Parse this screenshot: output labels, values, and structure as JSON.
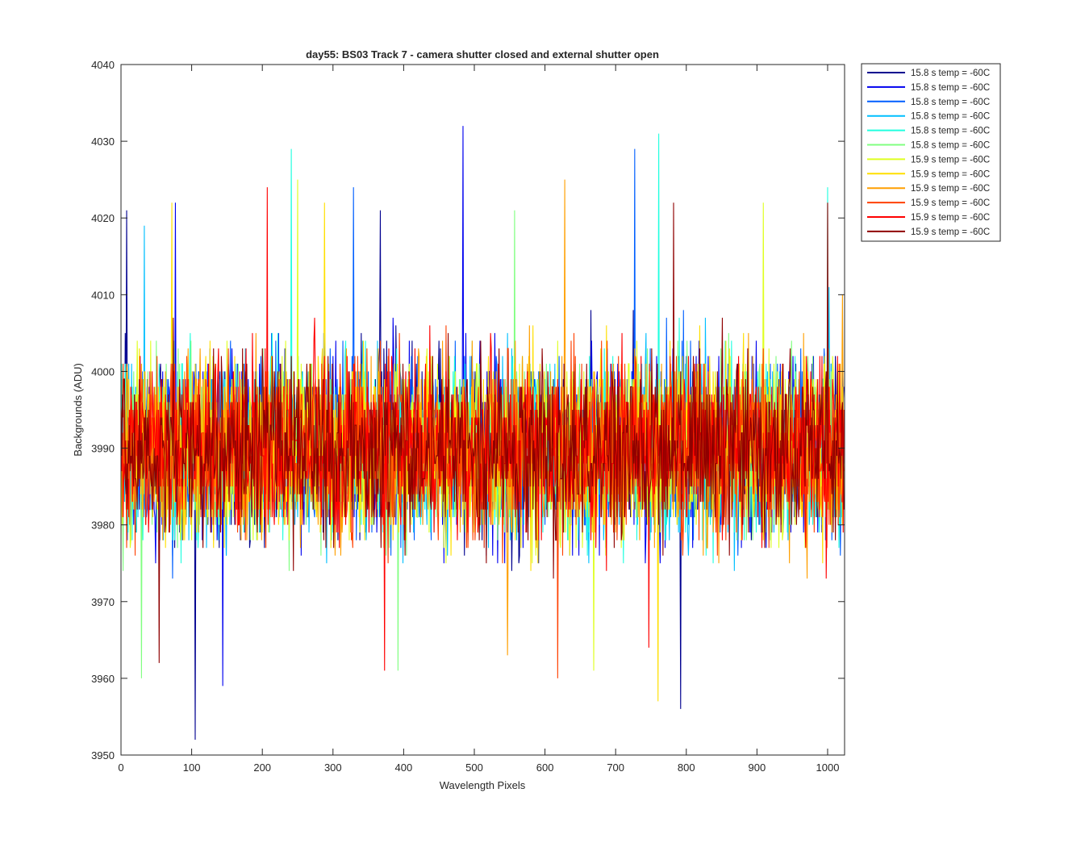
{
  "chart_data": {
    "type": "line",
    "title": "day55: BS03  Track 7 - camera shutter closed and external shutter open",
    "xlabel": "Wavelength Pixels",
    "ylabel": "Backgrounds (ADU)",
    "xlim": [
      0,
      1024
    ],
    "ylim": [
      3950,
      4040
    ],
    "xticks": [
      0,
      100,
      200,
      300,
      400,
      500,
      600,
      700,
      800,
      900,
      1000
    ],
    "yticks": [
      3950,
      3960,
      3970,
      3980,
      3990,
      4000,
      4010,
      4020,
      4030,
      4040
    ],
    "grid": false,
    "legend_position": "outside-top-right",
    "n_points": 1024,
    "baseline_mean": 3990,
    "noise_range": [
      -18,
      18
    ],
    "series": [
      {
        "name": "15.8 s temp = -60C",
        "color": "#00008F",
        "peaks": [
          {
            "x": 105,
            "y": 3952
          },
          {
            "x": 8,
            "y": 4021
          },
          {
            "x": 792,
            "y": 3956
          },
          {
            "x": 367,
            "y": 4021
          }
        ]
      },
      {
        "name": "15.8 s temp = -60C",
        "color": "#0000EF",
        "peaks": [
          {
            "x": 484,
            "y": 4032
          },
          {
            "x": 144,
            "y": 3959
          },
          {
            "x": 77,
            "y": 4022
          }
        ]
      },
      {
        "name": "15.8 s temp = -60C",
        "color": "#005FFF",
        "peaks": [
          {
            "x": 727,
            "y": 4029
          },
          {
            "x": 329,
            "y": 4024
          }
        ]
      },
      {
        "name": "15.8 s temp = -60C",
        "color": "#00BFFF",
        "peaks": [
          {
            "x": 33,
            "y": 4019
          },
          {
            "x": 1002,
            "y": 4011
          }
        ]
      },
      {
        "name": "15.8 s temp = -60C",
        "color": "#20FFDF",
        "peaks": [
          {
            "x": 761,
            "y": 4031
          },
          {
            "x": 241,
            "y": 4029
          },
          {
            "x": 1000,
            "y": 4024
          }
        ]
      },
      {
        "name": "15.8 s temp = -60C",
        "color": "#80FF80",
        "peaks": [
          {
            "x": 29,
            "y": 3960
          },
          {
            "x": 392,
            "y": 3961
          },
          {
            "x": 557,
            "y": 4021
          }
        ]
      },
      {
        "name": "15.9 s temp = -60C",
        "color": "#DFFF20",
        "peaks": [
          {
            "x": 250,
            "y": 4025
          },
          {
            "x": 909,
            "y": 4022
          },
          {
            "x": 669,
            "y": 3961
          }
        ]
      },
      {
        "name": "15.9 s temp = -60C",
        "color": "#FFDF00",
        "peaks": [
          {
            "x": 760,
            "y": 3957
          },
          {
            "x": 72,
            "y": 4022
          },
          {
            "x": 288,
            "y": 4022
          }
        ]
      },
      {
        "name": "15.9 s temp = -60C",
        "color": "#FF9F00",
        "peaks": [
          {
            "x": 628,
            "y": 4025
          },
          {
            "x": 547,
            "y": 3963
          },
          {
            "x": 1021,
            "y": 4010
          }
        ]
      },
      {
        "name": "15.9 s temp = -60C",
        "color": "#FF4000",
        "peaks": [
          {
            "x": 618,
            "y": 3960
          },
          {
            "x": 3,
            "y": 4001
          }
        ]
      },
      {
        "name": "15.9 s temp = -60C",
        "color": "#FF0000",
        "peaks": [
          {
            "x": 207,
            "y": 4024
          },
          {
            "x": 373,
            "y": 3961
          },
          {
            "x": 747,
            "y": 3964
          }
        ]
      },
      {
        "name": "15.9 s temp = -60C",
        "color": "#8F0000",
        "peaks": [
          {
            "x": 54,
            "y": 3962
          },
          {
            "x": 1000,
            "y": 4022
          },
          {
            "x": 782,
            "y": 4022
          }
        ]
      }
    ]
  }
}
